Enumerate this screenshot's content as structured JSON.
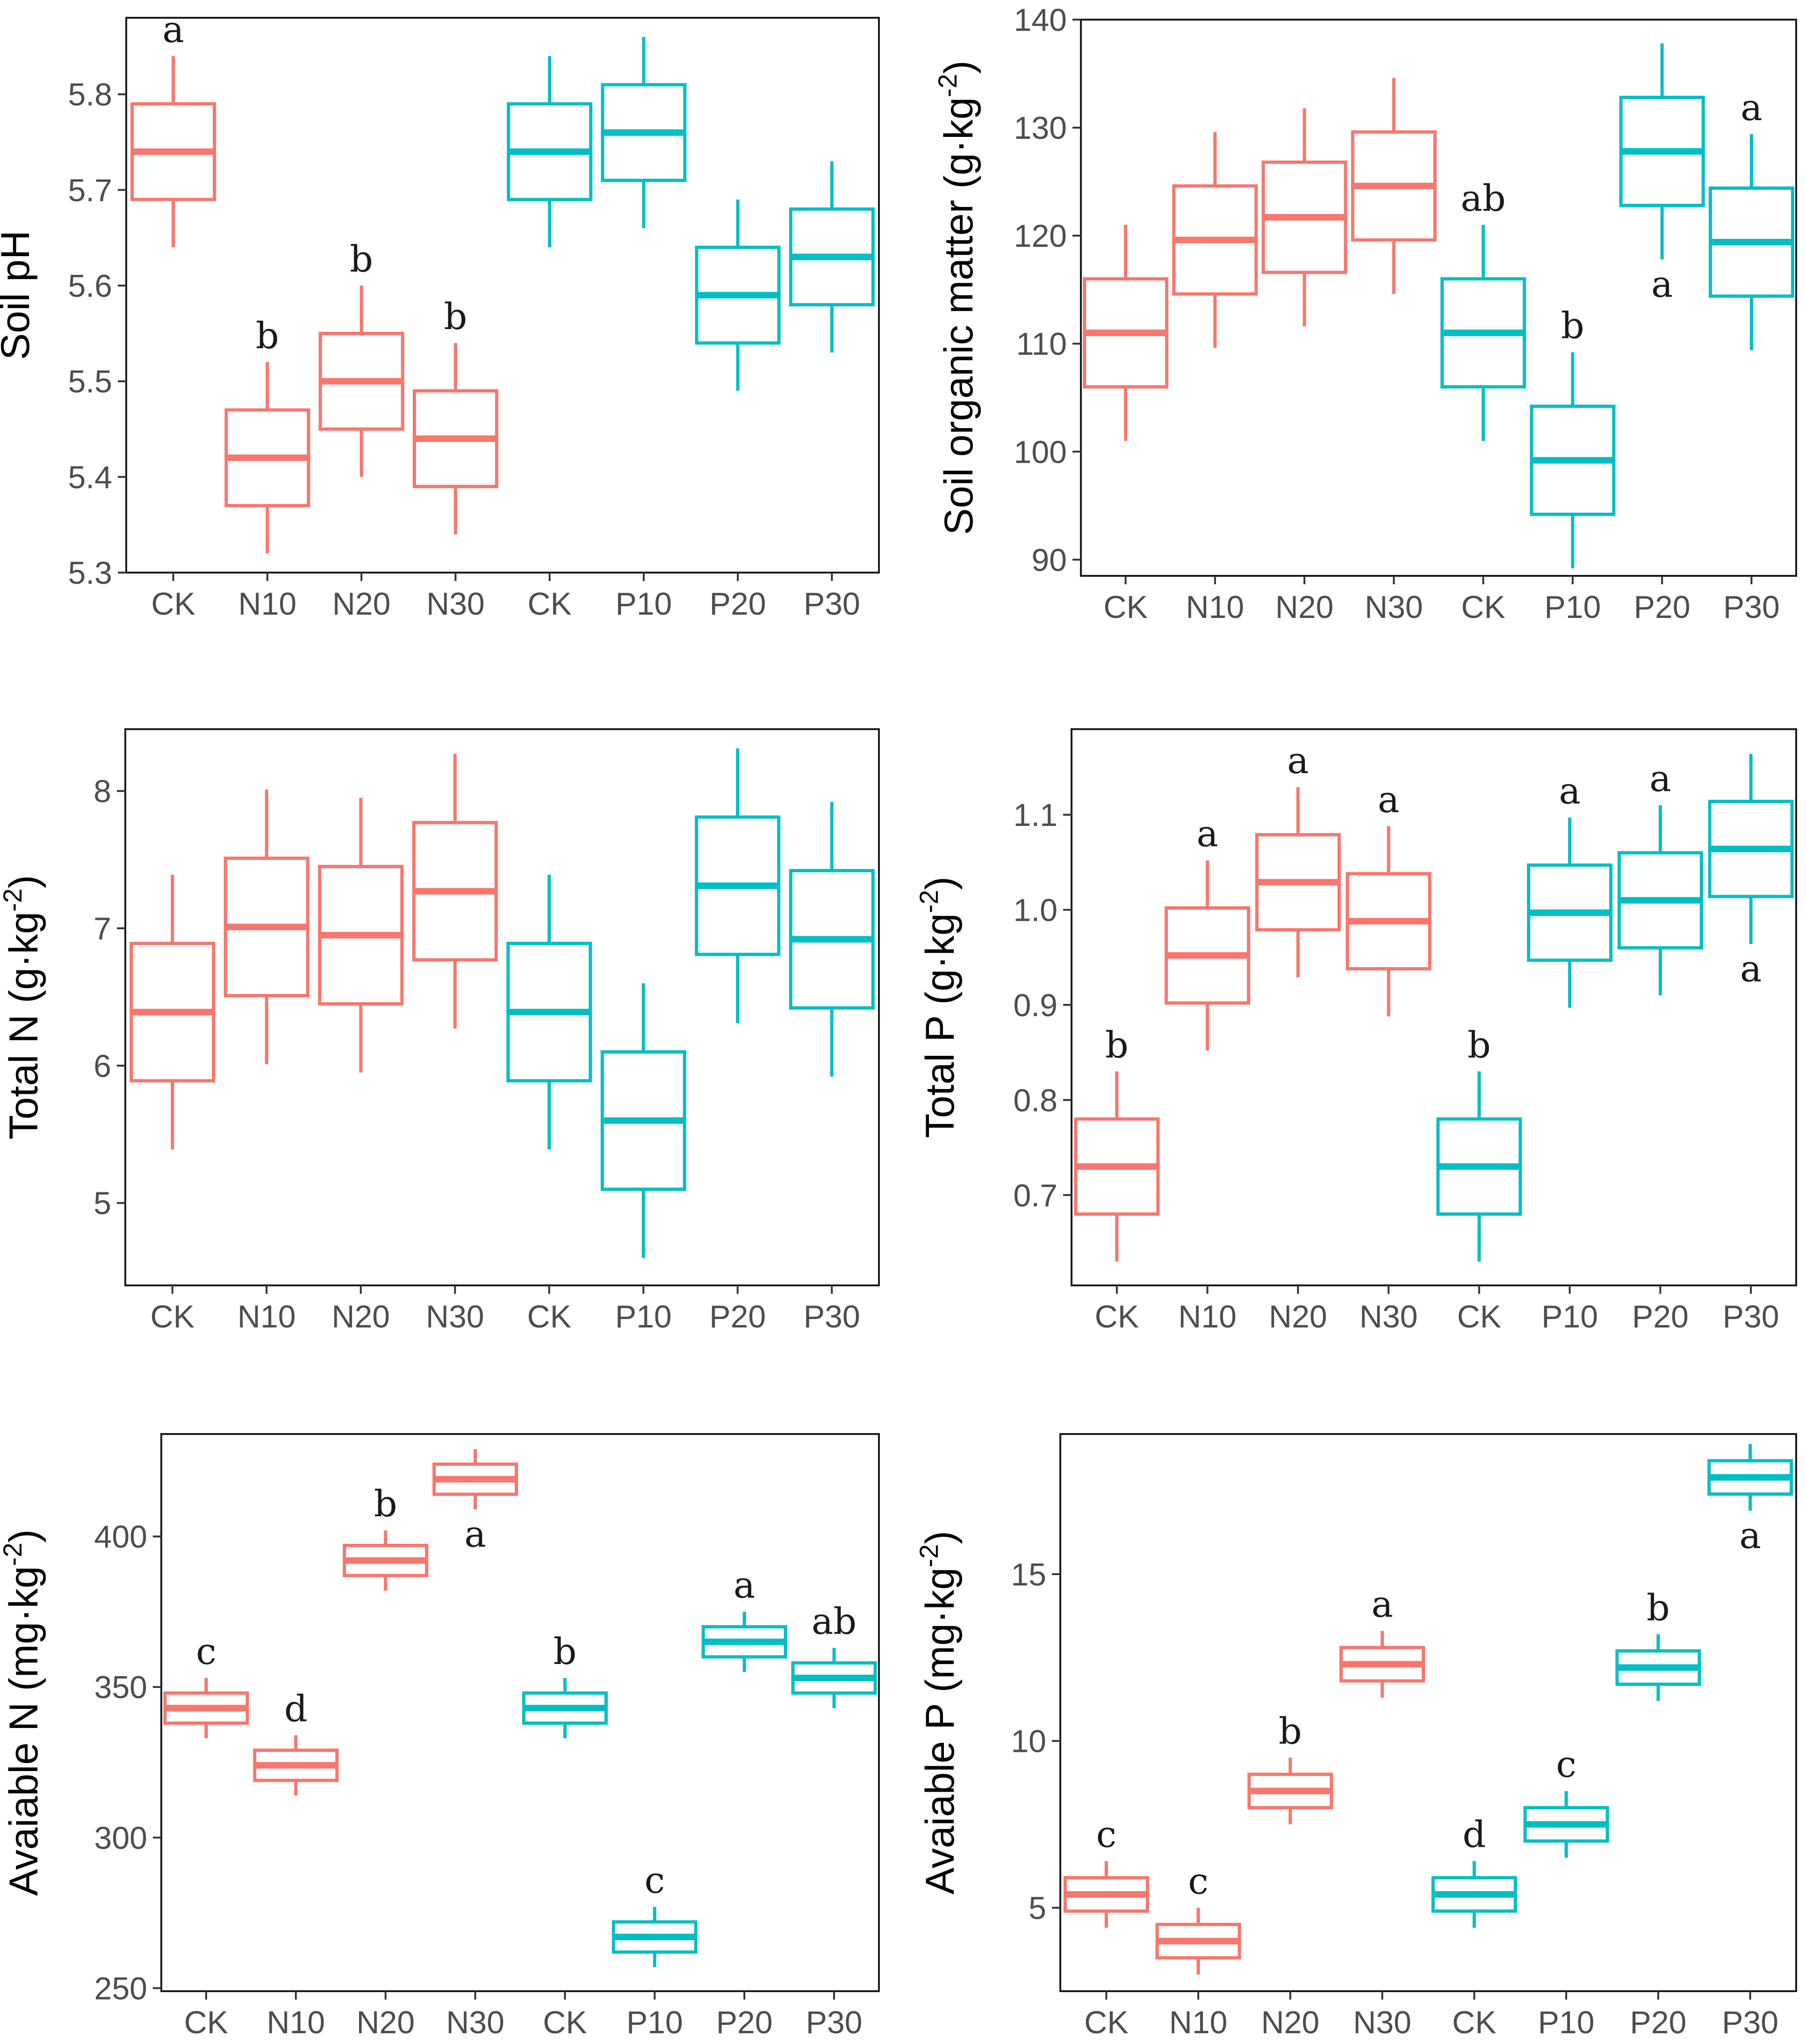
{
  "figure": {
    "background": "#ffffff"
  },
  "colors": {
    "N_group": "#F8766D",
    "P_group": "#00BFC4"
  },
  "chart_data": [
    {
      "type": "box",
      "ylabel": "Soil pH",
      "ylabel_sup": "",
      "ylabel_suffix": "",
      "ylim": [
        5.3,
        5.88
      ],
      "yticks": [
        5.3,
        5.4,
        5.5,
        5.6,
        5.7,
        5.8
      ],
      "ytick_labels": [
        "5.3",
        "5.4",
        "5.5",
        "5.6",
        "5.7",
        "5.8"
      ],
      "categories": [
        "CK",
        "N10",
        "N20",
        "N30",
        "CK",
        "P10",
        "P20",
        "P30"
      ],
      "boxes": [
        {
          "group": "N",
          "min": 5.64,
          "q1": 5.69,
          "median": 5.74,
          "q3": 5.79,
          "max": 5.84,
          "above": "a",
          "below": ""
        },
        {
          "group": "N",
          "min": 5.32,
          "q1": 5.37,
          "median": 5.42,
          "q3": 5.47,
          "max": 5.52,
          "above": "b",
          "below": ""
        },
        {
          "group": "N",
          "min": 5.4,
          "q1": 5.45,
          "median": 5.5,
          "q3": 5.55,
          "max": 5.6,
          "above": "b",
          "below": ""
        },
        {
          "group": "N",
          "min": 5.34,
          "q1": 5.39,
          "median": 5.44,
          "q3": 5.49,
          "max": 5.54,
          "above": "b",
          "below": ""
        },
        {
          "group": "P",
          "min": 5.64,
          "q1": 5.69,
          "median": 5.74,
          "q3": 5.79,
          "max": 5.84,
          "above": "",
          "below": ""
        },
        {
          "group": "P",
          "min": 5.66,
          "q1": 5.71,
          "median": 5.76,
          "q3": 5.81,
          "max": 5.86,
          "above": "",
          "below": ""
        },
        {
          "group": "P",
          "min": 5.49,
          "q1": 5.54,
          "median": 5.59,
          "q3": 5.64,
          "max": 5.69,
          "above": "",
          "below": ""
        },
        {
          "group": "P",
          "min": 5.53,
          "q1": 5.58,
          "median": 5.63,
          "q3": 5.68,
          "max": 5.73,
          "above": "",
          "below": ""
        }
      ]
    },
    {
      "type": "box",
      "ylabel": "Soil organic matter (g·kg",
      "ylabel_sup": "-2",
      "ylabel_suffix": ")",
      "ylim": [
        88.5,
        140
      ],
      "yticks": [
        90,
        100,
        110,
        120,
        130,
        140
      ],
      "ytick_labels": [
        "90",
        "100",
        "110",
        "120",
        "130",
        "140"
      ],
      "categories": [
        "CK",
        "N10",
        "N20",
        "N30",
        "CK",
        "P10",
        "P20",
        "P30"
      ],
      "boxes": [
        {
          "group": "N",
          "min": 101.0,
          "q1": 106.0,
          "median": 111.0,
          "q3": 116.0,
          "max": 121.0,
          "above": "",
          "below": ""
        },
        {
          "group": "N",
          "min": 109.6,
          "q1": 114.6,
          "median": 119.6,
          "q3": 124.6,
          "max": 129.6,
          "above": "",
          "below": ""
        },
        {
          "group": "N",
          "min": 111.6,
          "q1": 116.6,
          "median": 121.7,
          "q3": 126.8,
          "max": 131.8,
          "above": "",
          "below": ""
        },
        {
          "group": "N",
          "min": 114.6,
          "q1": 119.6,
          "median": 124.6,
          "q3": 129.6,
          "max": 134.6,
          "above": "",
          "below": ""
        },
        {
          "group": "P",
          "min": 101.0,
          "q1": 106.0,
          "median": 111.0,
          "q3": 116.0,
          "max": 121.0,
          "above": "ab",
          "below": ""
        },
        {
          "group": "P",
          "min": 89.2,
          "q1": 94.2,
          "median": 99.2,
          "q3": 104.2,
          "max": 109.2,
          "above": "b",
          "below": ""
        },
        {
          "group": "P",
          "min": 117.8,
          "q1": 122.8,
          "median": 127.8,
          "q3": 132.8,
          "max": 137.8,
          "above": "",
          "below": "a"
        },
        {
          "group": "P",
          "min": 109.4,
          "q1": 114.4,
          "median": 119.4,
          "q3": 124.4,
          "max": 129.4,
          "above": "a",
          "below": ""
        }
      ]
    },
    {
      "type": "box",
      "ylabel": "Total N (g·kg",
      "ylabel_sup": "-2",
      "ylabel_suffix": ")",
      "ylim": [
        4.4,
        8.45
      ],
      "yticks": [
        5,
        6,
        7,
        8
      ],
      "ytick_labels": [
        "5",
        "6",
        "7",
        "8"
      ],
      "categories": [
        "CK",
        "N10",
        "N20",
        "N30",
        "CK",
        "P10",
        "P20",
        "P30"
      ],
      "boxes": [
        {
          "group": "N",
          "min": 5.39,
          "q1": 5.89,
          "median": 6.39,
          "q3": 6.89,
          "max": 7.39,
          "above": "",
          "below": ""
        },
        {
          "group": "N",
          "min": 6.01,
          "q1": 6.51,
          "median": 7.01,
          "q3": 7.51,
          "max": 8.01,
          "above": "",
          "below": ""
        },
        {
          "group": "N",
          "min": 5.95,
          "q1": 6.45,
          "median": 6.95,
          "q3": 7.45,
          "max": 7.95,
          "above": "",
          "below": ""
        },
        {
          "group": "N",
          "min": 6.27,
          "q1": 6.77,
          "median": 7.27,
          "q3": 7.77,
          "max": 8.27,
          "above": "",
          "below": ""
        },
        {
          "group": "P",
          "min": 5.39,
          "q1": 5.89,
          "median": 6.39,
          "q3": 6.89,
          "max": 7.39,
          "above": "",
          "below": ""
        },
        {
          "group": "P",
          "min": 4.6,
          "q1": 5.1,
          "median": 5.6,
          "q3": 6.1,
          "max": 6.6,
          "above": "",
          "below": ""
        },
        {
          "group": "P",
          "min": 6.31,
          "q1": 6.81,
          "median": 7.31,
          "q3": 7.81,
          "max": 8.31,
          "above": "",
          "below": ""
        },
        {
          "group": "P",
          "min": 5.92,
          "q1": 6.42,
          "median": 6.92,
          "q3": 7.42,
          "max": 7.92,
          "above": "",
          "below": ""
        }
      ]
    },
    {
      "type": "box",
      "ylabel": "Total P (g·kg",
      "ylabel_sup": "-2",
      "ylabel_suffix": ")",
      "ylim": [
        0.605,
        1.19
      ],
      "yticks": [
        0.7,
        0.8,
        0.9,
        1.0,
        1.1
      ],
      "ytick_labels": [
        "0.7",
        "0.8",
        "0.9",
        "1.0",
        "1.1"
      ],
      "categories": [
        "CK",
        "N10",
        "N20",
        "N30",
        "CK",
        "P10",
        "P20",
        "P30"
      ],
      "boxes": [
        {
          "group": "N",
          "min": 0.63,
          "q1": 0.68,
          "median": 0.73,
          "q3": 0.78,
          "max": 0.83,
          "above": "b",
          "below": ""
        },
        {
          "group": "N",
          "min": 0.852,
          "q1": 0.902,
          "median": 0.952,
          "q3": 1.002,
          "max": 1.052,
          "above": "a",
          "below": ""
        },
        {
          "group": "N",
          "min": 0.929,
          "q1": 0.979,
          "median": 1.029,
          "q3": 1.079,
          "max": 1.129,
          "above": "a",
          "below": ""
        },
        {
          "group": "N",
          "min": 0.888,
          "q1": 0.938,
          "median": 0.988,
          "q3": 1.038,
          "max": 1.088,
          "above": "a",
          "below": ""
        },
        {
          "group": "P",
          "min": 0.63,
          "q1": 0.68,
          "median": 0.73,
          "q3": 0.78,
          "max": 0.83,
          "above": "b",
          "below": ""
        },
        {
          "group": "P",
          "min": 0.897,
          "q1": 0.947,
          "median": 0.997,
          "q3": 1.047,
          "max": 1.097,
          "above": "a",
          "below": ""
        },
        {
          "group": "P",
          "min": 0.91,
          "q1": 0.96,
          "median": 1.01,
          "q3": 1.06,
          "max": 1.11,
          "above": "a",
          "below": ""
        },
        {
          "group": "P",
          "min": 0.964,
          "q1": 1.014,
          "median": 1.064,
          "q3": 1.114,
          "max": 1.164,
          "above": "",
          "below": "a"
        }
      ]
    },
    {
      "type": "box",
      "ylabel": "Avaiable N (mg·kg",
      "ylabel_sup": "-2",
      "ylabel_suffix": ")",
      "ylim": [
        249,
        434
      ],
      "yticks": [
        250,
        300,
        350,
        400
      ],
      "ytick_labels": [
        "250",
        "300",
        "350",
        "400"
      ],
      "categories": [
        "CK",
        "N10",
        "N20",
        "N30",
        "CK",
        "P10",
        "P20",
        "P30"
      ],
      "boxes": [
        {
          "group": "N",
          "min": 333,
          "q1": 338,
          "median": 343,
          "q3": 348,
          "max": 353,
          "above": "c",
          "below": ""
        },
        {
          "group": "N",
          "min": 314,
          "q1": 319,
          "median": 324,
          "q3": 329,
          "max": 334,
          "above": "d",
          "below": ""
        },
        {
          "group": "N",
          "min": 382,
          "q1": 387,
          "median": 392,
          "q3": 397,
          "max": 402,
          "above": "b",
          "below": ""
        },
        {
          "group": "N",
          "min": 409,
          "q1": 414,
          "median": 419,
          "q3": 424,
          "max": 429,
          "above": "",
          "below": "a"
        },
        {
          "group": "P",
          "min": 333,
          "q1": 338,
          "median": 343,
          "q3": 348,
          "max": 353,
          "above": "b",
          "below": ""
        },
        {
          "group": "P",
          "min": 257,
          "q1": 262,
          "median": 267,
          "q3": 272,
          "max": 277,
          "above": "c",
          "below": ""
        },
        {
          "group": "P",
          "min": 355,
          "q1": 360,
          "median": 365,
          "q3": 370,
          "max": 375,
          "above": "a",
          "below": ""
        },
        {
          "group": "P",
          "min": 343,
          "q1": 348,
          "median": 353,
          "q3": 358,
          "max": 363,
          "above": "ab",
          "below": ""
        }
      ]
    },
    {
      "type": "box",
      "ylabel": "Avaiable P (mg·kg",
      "ylabel_sup": "-2",
      "ylabel_suffix": ")",
      "ylim": [
        2.5,
        19.2
      ],
      "yticks": [
        5,
        10,
        15
      ],
      "ytick_labels": [
        "5",
        "10",
        "15"
      ],
      "categories": [
        "CK",
        "N10",
        "N20",
        "N30",
        "CK",
        "P10",
        "P20",
        "P30"
      ],
      "boxes": [
        {
          "group": "N",
          "min": 4.4,
          "q1": 4.9,
          "median": 5.4,
          "q3": 5.9,
          "max": 6.4,
          "above": "c",
          "below": ""
        },
        {
          "group": "N",
          "min": 3.0,
          "q1": 3.5,
          "median": 4.0,
          "q3": 4.5,
          "max": 5.0,
          "above": "c",
          "below": ""
        },
        {
          "group": "N",
          "min": 7.5,
          "q1": 8.0,
          "median": 8.5,
          "q3": 9.0,
          "max": 9.5,
          "above": "b",
          "below": ""
        },
        {
          "group": "N",
          "min": 11.3,
          "q1": 11.8,
          "median": 12.3,
          "q3": 12.8,
          "max": 13.3,
          "above": "a",
          "below": ""
        },
        {
          "group": "P",
          "min": 4.4,
          "q1": 4.9,
          "median": 5.4,
          "q3": 5.9,
          "max": 6.4,
          "above": "d",
          "below": ""
        },
        {
          "group": "P",
          "min": 6.5,
          "q1": 7.0,
          "median": 7.5,
          "q3": 8.0,
          "max": 8.5,
          "above": "c",
          "below": ""
        },
        {
          "group": "P",
          "min": 11.2,
          "q1": 11.7,
          "median": 12.2,
          "q3": 12.7,
          "max": 13.2,
          "above": "b",
          "below": ""
        },
        {
          "group": "P",
          "min": 16.9,
          "q1": 17.4,
          "median": 17.9,
          "q3": 18.4,
          "max": 18.9,
          "above": "",
          "below": "a"
        }
      ]
    }
  ]
}
